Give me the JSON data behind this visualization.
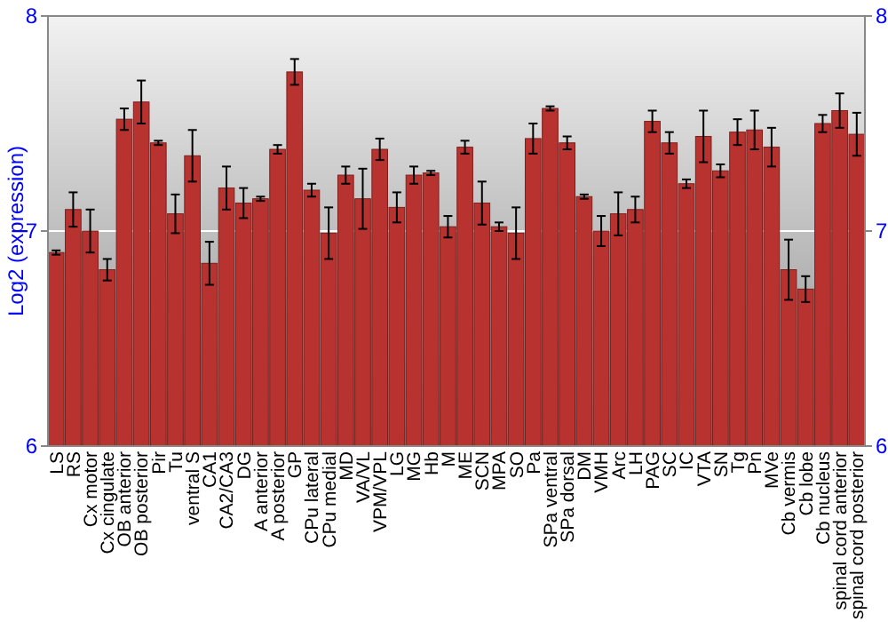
{
  "chart_data": {
    "type": "bar",
    "ylabel": "Log2 (expression)",
    "categories": [
      "LS",
      "RS",
      "Cx motor",
      "Cx cingulate",
      "OB anterior",
      "OB posterior",
      "Pir",
      "Tu",
      "ventral S",
      "CA1",
      "CA2/CA3",
      "DG",
      "A anterior",
      "A posterior",
      "GP",
      "CPu lateral",
      "CPu medial",
      "MD",
      "VA/VL",
      "VPM/VPL",
      "LG",
      "MG",
      "Hb",
      "M",
      "ME",
      "SCN",
      "MPA",
      "SO",
      "Pa",
      "SPa ventral",
      "SPa dorsal",
      "DM",
      "VMH",
      "Arc",
      "LH",
      "PAG",
      "SC",
      "IC",
      "VTA",
      "SN",
      "Tg",
      "Pn",
      "MVe",
      "Cb vermis",
      "Cb lobe",
      "Cb nucleus",
      "spinal cord anterior",
      "spinal cord posterior"
    ],
    "values": [
      6.9,
      7.1,
      7.0,
      6.82,
      7.52,
      7.6,
      7.41,
      7.08,
      7.35,
      6.85,
      7.2,
      7.13,
      7.15,
      7.38,
      7.74,
      7.19,
      6.99,
      7.26,
      7.15,
      7.38,
      7.11,
      7.26,
      7.27,
      7.02,
      7.39,
      7.13,
      7.02,
      6.99,
      7.43,
      7.57,
      7.41,
      7.16,
      7.0,
      7.08,
      7.1,
      7.51,
      7.41,
      7.22,
      7.44,
      7.28,
      7.46,
      7.47,
      7.39,
      6.82,
      6.73,
      7.5,
      7.56,
      7.45
    ],
    "errors": [
      0.01,
      0.08,
      0.1,
      0.05,
      0.05,
      0.1,
      0.01,
      0.09,
      0.12,
      0.1,
      0.1,
      0.07,
      0.01,
      0.02,
      0.06,
      0.03,
      0.12,
      0.04,
      0.14,
      0.05,
      0.07,
      0.04,
      0.01,
      0.05,
      0.03,
      0.1,
      0.02,
      0.12,
      0.07,
      0.01,
      0.03,
      0.01,
      0.07,
      0.1,
      0.06,
      0.05,
      0.05,
      0.02,
      0.12,
      0.03,
      0.06,
      0.09,
      0.09,
      0.14,
      0.06,
      0.04,
      0.08,
      0.1
    ],
    "color": "#b83330",
    "ylim": [
      6,
      8
    ],
    "yticks": [
      6,
      7,
      8
    ],
    "y2lim": [
      6,
      8
    ],
    "y2ticks": [
      6,
      7,
      8
    ],
    "grid": "y"
  }
}
